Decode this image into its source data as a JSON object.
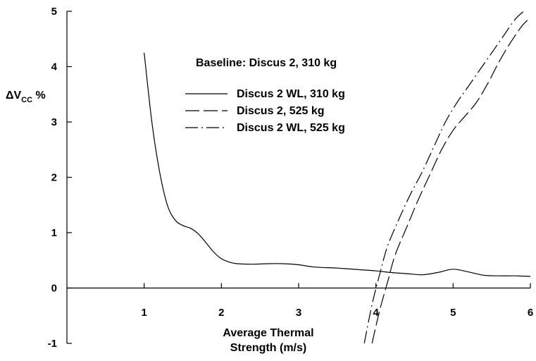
{
  "chart_data": {
    "type": "line",
    "title": "",
    "annotation": "Baseline: Discus 2, 310 kg",
    "xlabel_line1": "Average Thermal",
    "xlabel_line2": "Strength (m/s)",
    "ylabel_main": "ΔV",
    "ylabel_sub": "CC",
    "ylabel_unit": " %",
    "xlim": [
      0,
      6
    ],
    "ylim": [
      -1,
      5
    ],
    "x_ticks": [
      1,
      2,
      3,
      4,
      5,
      6
    ],
    "y_ticks": [
      -1,
      0,
      1,
      2,
      3,
      4,
      5
    ],
    "grid": false,
    "legend_position": "top-center",
    "series": [
      {
        "name": "Discus 2 WL, 310 kg",
        "style": "solid",
        "x": [
          1.0,
          1.1,
          1.2,
          1.3,
          1.4,
          1.5,
          1.6,
          1.7,
          1.8,
          1.9,
          2.0,
          2.1,
          2.2,
          2.4,
          2.6,
          2.8,
          3.0,
          3.2,
          3.5,
          3.8,
          4.0,
          4.2,
          4.4,
          4.6,
          4.8,
          5.0,
          5.2,
          5.4,
          5.6,
          5.8,
          6.0
        ],
        "values": [
          4.25,
          3.0,
          2.1,
          1.5,
          1.23,
          1.13,
          1.08,
          0.98,
          0.82,
          0.65,
          0.53,
          0.47,
          0.44,
          0.43,
          0.44,
          0.44,
          0.42,
          0.38,
          0.36,
          0.33,
          0.31,
          0.28,
          0.26,
          0.24,
          0.28,
          0.34,
          0.29,
          0.23,
          0.22,
          0.22,
          0.21
        ]
      },
      {
        "name": "Discus 2, 525 kg",
        "style": "dashed",
        "x": [
          3.95,
          4.05,
          4.15,
          4.25,
          4.4,
          4.55,
          4.7,
          4.85,
          5.0,
          5.15,
          5.3,
          5.45,
          5.6,
          5.75,
          5.9,
          6.0
        ],
        "values": [
          -1.0,
          -0.4,
          0.1,
          0.6,
          1.1,
          1.6,
          2.05,
          2.5,
          2.85,
          3.1,
          3.35,
          3.7,
          4.1,
          4.45,
          4.75,
          4.88
        ]
      },
      {
        "name": "Discus 2 WL, 525 kg",
        "style": "dash-dot",
        "x": [
          3.85,
          3.95,
          4.05,
          4.15,
          4.3,
          4.45,
          4.6,
          4.75,
          4.9,
          5.05,
          5.2,
          5.35,
          5.5,
          5.65,
          5.8,
          5.93
        ],
        "values": [
          -1.0,
          -0.3,
          0.25,
          0.75,
          1.25,
          1.7,
          2.1,
          2.55,
          3.0,
          3.35,
          3.65,
          3.95,
          4.25,
          4.55,
          4.85,
          5.02
        ]
      }
    ]
  }
}
